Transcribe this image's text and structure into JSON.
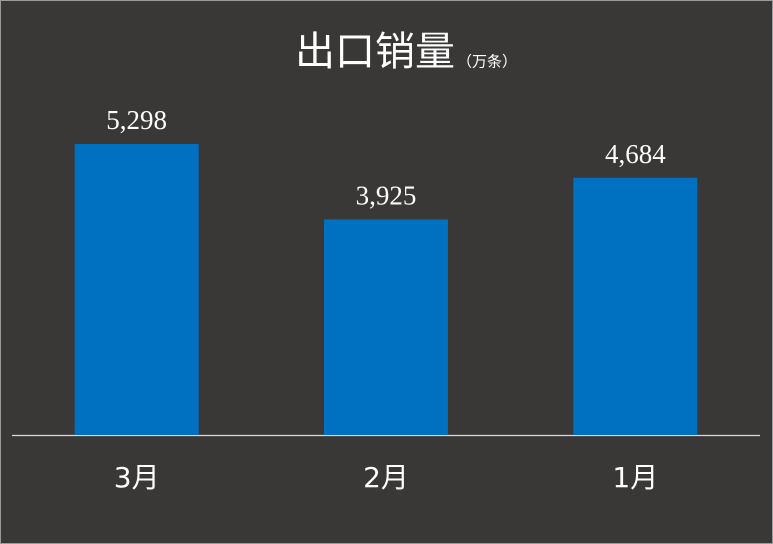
{
  "chart_data": {
    "type": "bar",
    "title": "出口销量",
    "subtitle": "（万条）",
    "categories": [
      "3月",
      "2月",
      "1月"
    ],
    "values": [
      5298,
      3925,
      4684
    ],
    "value_labels": [
      "5,298",
      "3,925",
      "4,684"
    ],
    "color": "#0070c0"
  }
}
